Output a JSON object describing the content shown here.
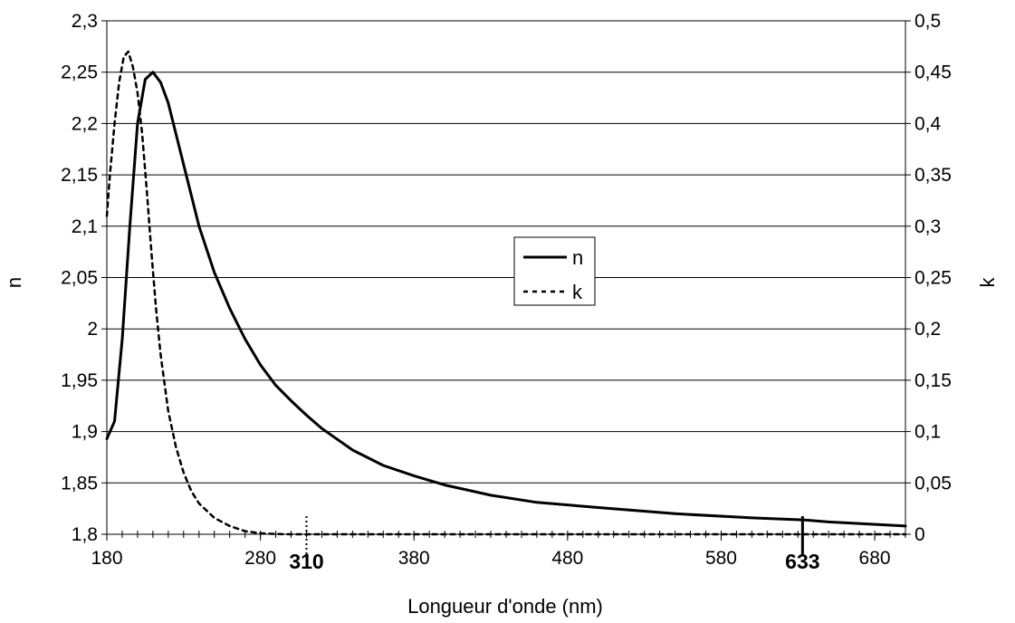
{
  "chart_data": {
    "type": "line",
    "xlabel": "Longueur d'onde (nm)",
    "ylabel_left": "n",
    "ylabel_right": "k",
    "xlim": [
      180,
      700
    ],
    "ylim_left": [
      1.8,
      2.3
    ],
    "ylim_right": [
      0,
      0.5
    ],
    "x_ticks": [
      180,
      280,
      380,
      480,
      580,
      680
    ],
    "x_tick_labels": [
      "180",
      "280",
      "380",
      "480",
      "580",
      "680"
    ],
    "y_left_ticks": [
      1.8,
      1.85,
      1.9,
      1.95,
      2.0,
      2.05,
      2.1,
      2.15,
      2.2,
      2.25,
      2.3
    ],
    "y_left_tick_labels": [
      "1,8",
      "1,85",
      "1,9",
      "1,95",
      "2",
      "2,05",
      "2,1",
      "2,15",
      "2,2",
      "2,25",
      "2,3"
    ],
    "y_right_ticks": [
      0,
      0.05,
      0.1,
      0.15,
      0.2,
      0.25,
      0.3,
      0.35,
      0.4,
      0.45,
      0.5
    ],
    "y_right_tick_labels": [
      "0",
      "0,05",
      "0,1",
      "0,15",
      "0,2",
      "0,25",
      "0,3",
      "0,35",
      "0,4",
      "0,45",
      "0,5"
    ],
    "grid": "horizontal",
    "legend_position": "center",
    "markers": [
      {
        "x": 310,
        "label": "310",
        "style": "dotted"
      },
      {
        "x": 633,
        "label": "633",
        "style": "solid"
      }
    ],
    "series": [
      {
        "name": "n",
        "axis": "left",
        "style": "solid",
        "color": "#000000",
        "x": [
          180,
          185,
          190,
          195,
          200,
          205,
          210,
          215,
          220,
          230,
          240,
          250,
          260,
          270,
          280,
          290,
          300,
          310,
          320,
          340,
          360,
          380,
          400,
          430,
          460,
          500,
          550,
          600,
          633,
          650,
          700
        ],
        "y": [
          1.893,
          1.91,
          1.99,
          2.1,
          2.2,
          2.243,
          2.25,
          2.24,
          2.22,
          2.16,
          2.1,
          2.055,
          2.02,
          1.99,
          1.965,
          1.945,
          1.93,
          1.916,
          1.903,
          1.882,
          1.867,
          1.857,
          1.848,
          1.838,
          1.831,
          1.826,
          1.82,
          1.816,
          1.814,
          1.812,
          1.808
        ]
      },
      {
        "name": "k",
        "axis": "right",
        "style": "dashed",
        "color": "#000000",
        "x": [
          180,
          182,
          185,
          188,
          191,
          194,
          197,
          200,
          203,
          206,
          209,
          212,
          215,
          220,
          225,
          230,
          235,
          240,
          250,
          260,
          270,
          280,
          290,
          300,
          350,
          400,
          500,
          600,
          700
        ],
        "y": [
          0.31,
          0.35,
          0.4,
          0.44,
          0.465,
          0.47,
          0.455,
          0.43,
          0.39,
          0.335,
          0.275,
          0.22,
          0.175,
          0.12,
          0.085,
          0.06,
          0.042,
          0.03,
          0.016,
          0.008,
          0.003,
          0.001,
          0.0003,
          0,
          0,
          0,
          0,
          0,
          0
        ]
      }
    ]
  }
}
